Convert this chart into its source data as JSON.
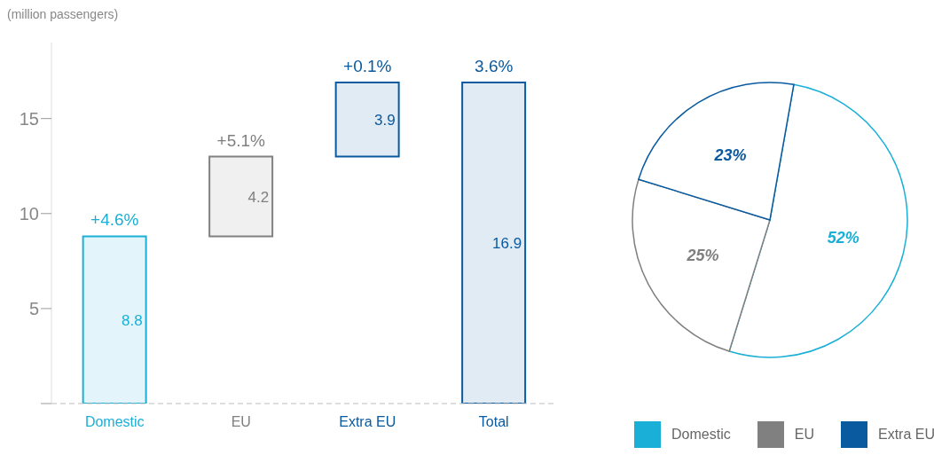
{
  "chart_data": [
    {
      "type": "bar",
      "ylabel": "(million passengers)",
      "categories": [
        "Domestic",
        "EU",
        "Extra EU",
        "Total"
      ],
      "values": [
        8.8,
        4.2,
        3.9,
        16.9
      ],
      "base": [
        0,
        8.8,
        13.0,
        0
      ],
      "colors": [
        "#1aafd6",
        "#808080",
        "#0a5aa0",
        "#0a5aa0"
      ],
      "value_labels": [
        "8.8",
        "4.2",
        "3.9",
        "16.9"
      ],
      "ylim": [
        0,
        19
      ],
      "yticks": [
        {
          "value": 0,
          "label": null
        },
        5,
        10,
        15
      ],
      "annotations": [
        {
          "text": "+4.6%",
          "x": "Domestic",
          "y": 8.8
        },
        {
          "text": "+5.1%",
          "x": "EU",
          "y": 13.0
        },
        {
          "text": "+0.1%",
          "x": "Extra EU",
          "y": 16.9
        },
        {
          "text": "3.6%",
          "x": "Total",
          "y": 16.9
        }
      ],
      "grid": false
    },
    {
      "type": "pie",
      "categories": [
        "Domestic",
        "EU",
        "Extra EU"
      ],
      "values": [
        52,
        25,
        23
      ],
      "colors": [
        "#1aafd6",
        "#808080",
        "#0a5aa0"
      ],
      "value_labels": [
        "52%",
        "25%",
        "23%"
      ],
      "legend": "bottom right"
    }
  ]
}
